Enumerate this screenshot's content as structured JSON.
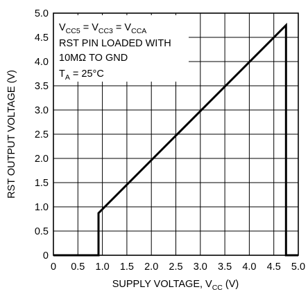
{
  "chart_data": {
    "type": "line",
    "xlabel": {
      "main": "SUPPLY VOLTAGE, V",
      "sub": "CC",
      "unit": " (V)"
    },
    "ylabel": "RST OUTPUT VOLTAGE (V)",
    "xlim": [
      0,
      5.0
    ],
    "ylim": [
      0,
      5.0
    ],
    "grid": true,
    "x_ticks": [
      "0",
      "0.5",
      "1.0",
      "1.5",
      "2.0",
      "2.5",
      "3.0",
      "3.5",
      "4.0",
      "4.5",
      "5.0"
    ],
    "y_ticks": [
      "0",
      "0.5",
      "1.0",
      "1.5",
      "2.0",
      "2.5",
      "3.0",
      "3.5",
      "4.0",
      "4.5",
      "5.0"
    ],
    "series": [
      {
        "x": [
          0,
          0.92,
          0.92,
          4.75,
          4.75,
          5.0
        ],
        "y": [
          0,
          0,
          0.87,
          4.75,
          0,
          0
        ]
      }
    ],
    "annotations": {
      "line1": {
        "a": "V",
        "a_sub": "CC5",
        "b": " = V",
        "b_sub": "CC3",
        "c": " = V",
        "c_sub": "CCA"
      },
      "line2": "RST PIN LOADED WITH",
      "line3": "10MΩ TO GND",
      "line4": {
        "a": "T",
        "a_sub": "A",
        "b": " = 25°C"
      }
    }
  }
}
